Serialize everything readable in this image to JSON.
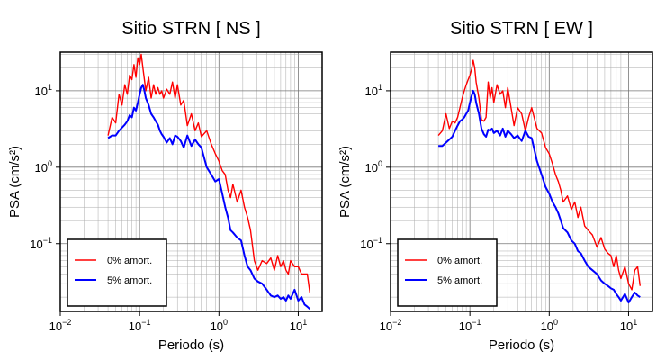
{
  "chart_data": [
    {
      "type": "line",
      "title": "Sitio STRN [ NS ]",
      "xlabel": "Periodo (s)",
      "ylabel": "PSA (cm/s²)",
      "xscale": "log",
      "yscale": "log",
      "xlim": [
        0.01,
        20
      ],
      "ylim": [
        0.013,
        32
      ],
      "xticks": [
        "10",
        "10",
        "10",
        "10"
      ],
      "xtick_exponents": [
        "−2",
        "−1",
        "0",
        "1"
      ],
      "xtick_values": [
        0.01,
        0.1,
        1,
        10
      ],
      "yticks": [
        "10",
        "10",
        "10"
      ],
      "ytick_exponents": [
        "−1",
        "0",
        "1"
      ],
      "ytick_values": [
        0.1,
        1,
        10
      ],
      "grid": true,
      "legend_position": "bottom-left",
      "series": [
        {
          "name": "0% amort.",
          "color": "#ff0000",
          "x": [
            0.04,
            0.045,
            0.05,
            0.055,
            0.06,
            0.065,
            0.07,
            0.075,
            0.08,
            0.085,
            0.09,
            0.095,
            0.1,
            0.105,
            0.11,
            0.115,
            0.12,
            0.13,
            0.14,
            0.15,
            0.16,
            0.17,
            0.18,
            0.19,
            0.2,
            0.22,
            0.24,
            0.26,
            0.28,
            0.3,
            0.33,
            0.36,
            0.4,
            0.45,
            0.5,
            0.55,
            0.6,
            0.7,
            0.8,
            0.9,
            1.0,
            1.1,
            1.2,
            1.3,
            1.4,
            1.5,
            1.7,
            1.9,
            2.1,
            2.3,
            2.5,
            2.8,
            3.1,
            3.5,
            4.0,
            4.5,
            5.0,
            5.5,
            6.0,
            6.5,
            7.0,
            7.5,
            8.0,
            9.0,
            10.0,
            11.0,
            12.0,
            13.0,
            14.0
          ],
          "y": [
            2.6,
            4.5,
            3.8,
            9.0,
            6.5,
            12.0,
            9.0,
            16.0,
            14.0,
            22.0,
            15.0,
            27.0,
            22.0,
            30.0,
            20.0,
            14.0,
            10.0,
            15.0,
            8.0,
            12.0,
            9.0,
            11.0,
            9.0,
            10.0,
            8.0,
            10.5,
            9.0,
            13.0,
            8.0,
            12.0,
            6.5,
            7.5,
            3.5,
            5.0,
            3.0,
            3.8,
            2.5,
            3.0,
            2.0,
            1.5,
            1.2,
            0.9,
            0.8,
            0.5,
            0.4,
            0.6,
            0.35,
            0.5,
            0.3,
            0.22,
            0.15,
            0.06,
            0.045,
            0.06,
            0.055,
            0.065,
            0.045,
            0.07,
            0.05,
            0.06,
            0.045,
            0.04,
            0.06,
            0.05,
            0.05,
            0.04,
            0.04,
            0.04,
            0.023
          ]
        },
        {
          "name": "5% amort.",
          "color": "#0000ff",
          "x": [
            0.04,
            0.045,
            0.05,
            0.055,
            0.06,
            0.065,
            0.07,
            0.075,
            0.08,
            0.085,
            0.09,
            0.095,
            0.1,
            0.105,
            0.11,
            0.115,
            0.12,
            0.13,
            0.14,
            0.15,
            0.16,
            0.17,
            0.18,
            0.19,
            0.2,
            0.22,
            0.24,
            0.26,
            0.28,
            0.3,
            0.33,
            0.36,
            0.4,
            0.45,
            0.5,
            0.55,
            0.6,
            0.7,
            0.8,
            0.9,
            1.0,
            1.1,
            1.2,
            1.3,
            1.4,
            1.5,
            1.7,
            1.9,
            2.1,
            2.3,
            2.5,
            2.8,
            3.1,
            3.5,
            4.0,
            4.5,
            5.0,
            5.5,
            6.0,
            6.5,
            7.0,
            7.5,
            8.0,
            9.0,
            10.0,
            11.0,
            12.0,
            13.0,
            14.0
          ],
          "y": [
            2.4,
            2.6,
            2.6,
            3.0,
            3.3,
            3.6,
            4.0,
            4.8,
            4.5,
            6.0,
            5.5,
            7.0,
            9.0,
            11.0,
            12.0,
            10.0,
            8.0,
            6.5,
            5.0,
            4.5,
            4.0,
            3.6,
            3.0,
            2.7,
            2.5,
            2.1,
            2.4,
            2.0,
            2.6,
            2.5,
            2.2,
            1.8,
            2.6,
            1.9,
            2.3,
            2.0,
            1.8,
            1.0,
            0.8,
            0.65,
            0.7,
            0.45,
            0.3,
            0.22,
            0.15,
            0.14,
            0.12,
            0.11,
            0.07,
            0.05,
            0.045,
            0.035,
            0.032,
            0.03,
            0.025,
            0.021,
            0.02,
            0.021,
            0.019,
            0.02,
            0.018,
            0.021,
            0.019,
            0.025,
            0.018,
            0.02,
            0.016,
            0.015,
            0.014
          ]
        }
      ]
    },
    {
      "type": "line",
      "title": "Sitio STRN [ EW ]",
      "xlabel": "Periodo (s)",
      "ylabel": "PSA (cm/s²)",
      "xscale": "log",
      "yscale": "log",
      "xlim": [
        0.01,
        20
      ],
      "ylim": [
        0.013,
        32
      ],
      "xticks": [
        "10",
        "10",
        "10",
        "10"
      ],
      "xtick_exponents": [
        "−2",
        "−1",
        "0",
        "1"
      ],
      "xtick_values": [
        0.01,
        0.1,
        1,
        10
      ],
      "yticks": [
        "10",
        "10",
        "10"
      ],
      "ytick_exponents": [
        "−1",
        "0",
        "1"
      ],
      "ytick_values": [
        0.1,
        1,
        10
      ],
      "grid": true,
      "legend_position": "bottom-left",
      "series": [
        {
          "name": "0% amort.",
          "color": "#ff0000",
          "x": [
            0.04,
            0.045,
            0.05,
            0.055,
            0.06,
            0.065,
            0.07,
            0.075,
            0.08,
            0.085,
            0.09,
            0.095,
            0.1,
            0.105,
            0.11,
            0.115,
            0.12,
            0.13,
            0.14,
            0.15,
            0.16,
            0.17,
            0.18,
            0.19,
            0.2,
            0.22,
            0.24,
            0.26,
            0.28,
            0.3,
            0.33,
            0.36,
            0.4,
            0.45,
            0.5,
            0.55,
            0.6,
            0.7,
            0.8,
            0.9,
            1.0,
            1.1,
            1.2,
            1.3,
            1.4,
            1.5,
            1.7,
            1.9,
            2.1,
            2.3,
            2.5,
            2.8,
            3.1,
            3.5,
            4.0,
            4.5,
            5.0,
            5.5,
            6.0,
            6.5,
            7.0,
            7.5,
            8.0,
            9.0,
            10.0,
            11.0,
            12.0,
            13.0,
            14.0
          ],
          "y": [
            2.6,
            3.0,
            5.0,
            3.2,
            4.0,
            3.8,
            4.5,
            6.0,
            8.0,
            10.0,
            12.0,
            14.0,
            16.0,
            19.0,
            25.0,
            20.0,
            13.0,
            8.0,
            4.2,
            4.0,
            4.5,
            13.0,
            8.0,
            11.0,
            7.0,
            12.0,
            9.0,
            10.0,
            6.0,
            11.0,
            6.0,
            3.5,
            6.0,
            5.0,
            3.0,
            4.5,
            6.0,
            3.2,
            2.8,
            1.8,
            1.5,
            1.1,
            0.8,
            0.65,
            0.5,
            0.35,
            0.42,
            0.28,
            0.35,
            0.22,
            0.3,
            0.17,
            0.15,
            0.13,
            0.09,
            0.12,
            0.085,
            0.075,
            0.07,
            0.05,
            0.07,
            0.045,
            0.035,
            0.05,
            0.03,
            0.025,
            0.045,
            0.05,
            0.028
          ]
        },
        {
          "name": "5% amort.",
          "color": "#0000ff",
          "x": [
            0.04,
            0.045,
            0.05,
            0.055,
            0.06,
            0.065,
            0.07,
            0.075,
            0.08,
            0.085,
            0.09,
            0.095,
            0.1,
            0.105,
            0.11,
            0.115,
            0.12,
            0.13,
            0.14,
            0.15,
            0.16,
            0.17,
            0.18,
            0.19,
            0.2,
            0.22,
            0.24,
            0.26,
            0.28,
            0.3,
            0.33,
            0.36,
            0.4,
            0.45,
            0.5,
            0.55,
            0.6,
            0.7,
            0.8,
            0.9,
            1.0,
            1.1,
            1.2,
            1.3,
            1.4,
            1.5,
            1.7,
            1.9,
            2.1,
            2.3,
            2.5,
            2.8,
            3.1,
            3.5,
            4.0,
            4.5,
            5.0,
            5.5,
            6.0,
            6.5,
            7.0,
            7.5,
            8.0,
            9.0,
            10.0,
            11.0,
            12.0,
            13.0,
            14.0
          ],
          "y": [
            1.9,
            1.9,
            2.1,
            2.3,
            2.5,
            3.0,
            3.5,
            4.0,
            4.2,
            4.5,
            5.0,
            5.5,
            7.0,
            8.5,
            10.0,
            9.0,
            7.0,
            5.0,
            3.2,
            2.7,
            2.5,
            3.1,
            3.0,
            3.2,
            2.8,
            3.0,
            2.6,
            3.2,
            2.5,
            3.0,
            2.7,
            2.4,
            2.6,
            2.2,
            3.0,
            2.5,
            2.4,
            1.2,
            0.8,
            0.55,
            0.45,
            0.35,
            0.3,
            0.25,
            0.2,
            0.16,
            0.14,
            0.11,
            0.1,
            0.08,
            0.075,
            0.06,
            0.05,
            0.045,
            0.04,
            0.033,
            0.03,
            0.028,
            0.026,
            0.025,
            0.022,
            0.02,
            0.018,
            0.022,
            0.017,
            0.02,
            0.023,
            0.021,
            0.02
          ]
        }
      ]
    }
  ]
}
